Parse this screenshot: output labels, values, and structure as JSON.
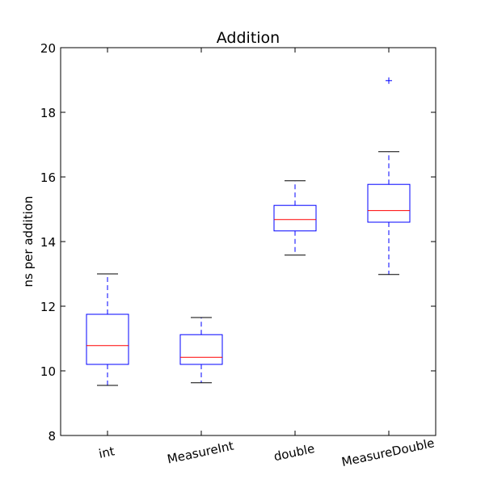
{
  "chart_data": {
    "type": "box",
    "title": "Addition",
    "xlabel": "",
    "ylabel": "ns per addition",
    "ylim": [
      8,
      20
    ],
    "yticks": [
      8,
      10,
      12,
      14,
      16,
      18,
      20
    ],
    "grid": false,
    "categories": [
      "int",
      "MeasureInt",
      "double",
      "MeasureDouble"
    ],
    "boxes": [
      {
        "category": "int",
        "whisker_low": 9.55,
        "q1": 10.2,
        "median": 10.78,
        "q3": 11.75,
        "whisker_high": 13.0,
        "outliers": []
      },
      {
        "category": "MeasureInt",
        "whisker_low": 9.63,
        "q1": 10.2,
        "median": 10.42,
        "q3": 11.12,
        "whisker_high": 11.65,
        "outliers": []
      },
      {
        "category": "double",
        "whisker_low": 13.58,
        "q1": 14.33,
        "median": 14.68,
        "q3": 15.12,
        "whisker_high": 15.88,
        "outliers": []
      },
      {
        "category": "MeasureDouble",
        "whisker_low": 12.98,
        "q1": 14.6,
        "median": 14.96,
        "q3": 15.77,
        "whisker_high": 16.78,
        "outliers": [
          18.98
        ]
      }
    ],
    "colors": {
      "box": "#0000ff",
      "median": "#ff0000",
      "whisker": "#0000ff",
      "cap": "#000000",
      "outlier": "#0000ff",
      "axes": "#000000"
    }
  }
}
